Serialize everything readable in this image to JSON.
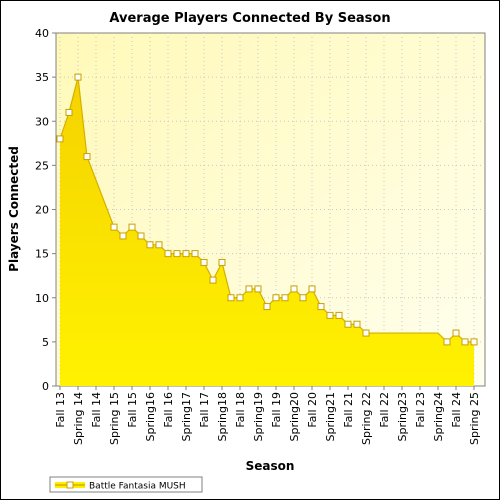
{
  "chart_data": {
    "type": "area",
    "title": "Average Players Connected By Season",
    "xlabel": "Season",
    "ylabel": "Players Connected",
    "ylim": [
      0,
      40
    ],
    "yticks": [
      0,
      5,
      10,
      15,
      20,
      25,
      30,
      35,
      40
    ],
    "grid": true,
    "legend": "bottom-left",
    "x_tick_labels": [
      "Fall 13",
      "Spring 14",
      "Fall 14",
      "Spring 15",
      "Fall 15",
      "Spring16",
      "Fall 16",
      "Spring17",
      "Fall 17",
      "Spring18",
      "Fall 18",
      "Spring19",
      "Fall 19",
      "Spring20",
      "Fall 20",
      "Spring21",
      "Fall 21",
      "Spring 22",
      "Fall 22",
      "Spring23",
      "Fall 23",
      "Spring24",
      "Fall 24",
      "Spring 25"
    ],
    "series": [
      {
        "name": "Battle Fantasia MUSH",
        "color": "#ffee00",
        "line_color": "#d4b000",
        "points": [
          [
            0,
            28
          ],
          [
            0.5,
            31
          ],
          [
            1,
            35
          ],
          [
            1.5,
            26
          ],
          [
            3,
            18
          ],
          [
            3.5,
            17
          ],
          [
            4,
            18
          ],
          [
            4.5,
            17
          ],
          [
            5,
            16
          ],
          [
            5.5,
            16
          ],
          [
            6,
            15
          ],
          [
            6.5,
            15
          ],
          [
            7,
            15
          ],
          [
            7.5,
            15
          ],
          [
            8,
            14
          ],
          [
            8.5,
            12
          ],
          [
            9,
            14
          ],
          [
            9.5,
            10
          ],
          [
            10,
            10
          ],
          [
            10.5,
            11
          ],
          [
            11,
            11
          ],
          [
            11.5,
            9
          ],
          [
            12,
            10
          ],
          [
            12.5,
            10
          ],
          [
            13,
            11
          ],
          [
            13.5,
            10
          ],
          [
            14,
            11
          ],
          [
            14.5,
            9
          ],
          [
            15,
            8
          ],
          [
            15.5,
            8
          ],
          [
            16,
            7
          ],
          [
            16.5,
            7
          ],
          [
            17,
            6
          ],
          [
            21,
            6
          ],
          [
            21.5,
            5
          ],
          [
            22,
            6
          ],
          [
            22.5,
            5
          ],
          [
            23,
            5
          ]
        ],
        "marked_points": [
          0,
          1,
          2,
          3,
          4,
          5,
          6,
          7,
          8,
          9,
          10,
          11,
          12,
          13,
          14,
          15,
          16,
          17,
          18,
          19,
          20,
          21,
          22,
          23,
          24,
          25,
          26,
          27,
          28,
          29,
          30,
          31,
          32,
          34,
          35,
          36,
          37
        ]
      }
    ]
  }
}
